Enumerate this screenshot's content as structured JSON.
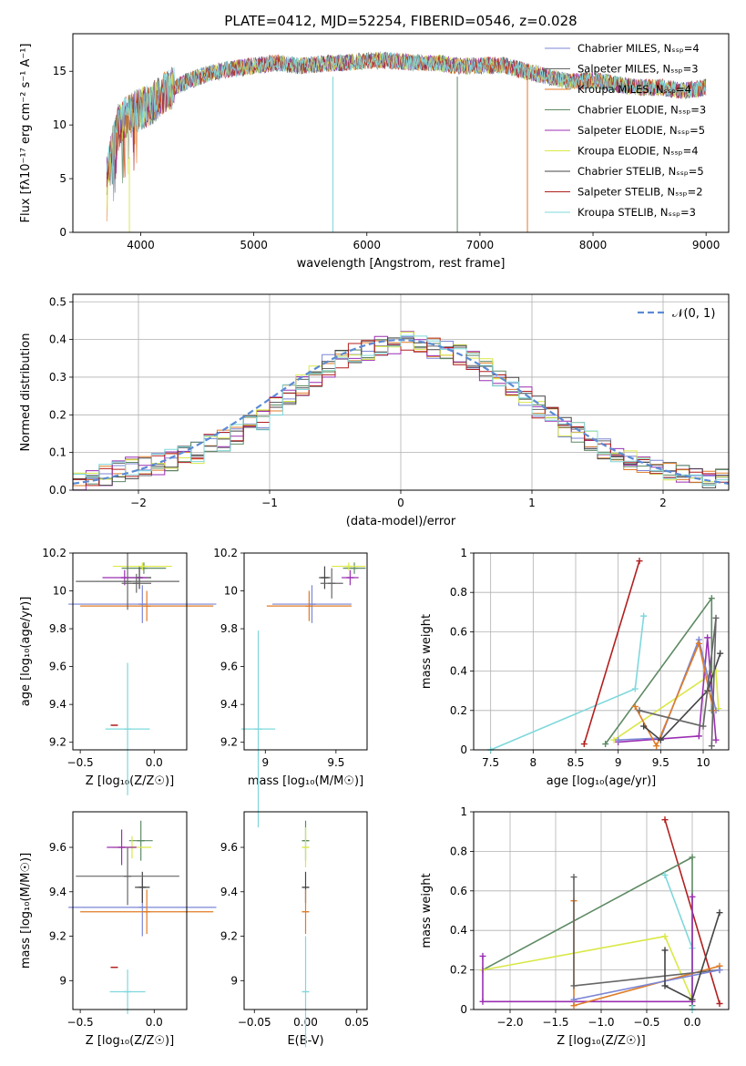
{
  "figure_title": "PLATE=0412, MJD=52254, FIBERID=0546, z=0.028",
  "model_colors": [
    "#7b86d6",
    "#666666",
    "#e07b25",
    "#5e8a64",
    "#9b2fb2",
    "#d9e847",
    "#444444",
    "#b21f1f",
    "#7fd8dc"
  ],
  "chart_data": [
    {
      "id": "spectrum",
      "type": "line",
      "xlabel": "wavelength [Angstrom, rest frame]",
      "ylabel": "Flux [fλ10⁻¹⁷ erg cm⁻² s⁻¹ A⁻¹]",
      "xlim": [
        3400,
        9200
      ],
      "ylim": [
        0,
        18.5
      ],
      "xticks": [
        4000,
        5000,
        6000,
        7000,
        8000,
        9000
      ],
      "yticks": [
        0,
        5,
        10,
        15
      ],
      "grid": false,
      "legend_position": "upper-right",
      "legend": [
        "Chabrier MILES, N_SSP=4",
        "Salpeter MILES, N_SSP=3",
        "Kroupa MILES, N_SSP=4",
        "Chabrier ELODIE, N_SSP=3",
        "Salpeter ELODIE, N_SSP=5",
        "Kroupa ELODIE, N_SSP=4",
        "Chabrier STELIB, N_SSP=5",
        "Salpeter STELIB, N_SSP=2",
        "Kroupa STELIB, N_SSP=3"
      ],
      "continuum": {
        "x": [
          3700,
          3800,
          3900,
          4000,
          4100,
          4200,
          4400,
          4600,
          4800,
          5000,
          5200,
          5400,
          5600,
          5800,
          6000,
          6200,
          6400,
          6600,
          6800,
          7000,
          7200,
          7400,
          7600,
          7800,
          8000,
          8200,
          8400,
          8600,
          8800,
          9000
        ],
        "y": [
          5.5,
          10,
          11,
          11.5,
          12,
          13,
          14,
          14.8,
          15.2,
          15.5,
          15.8,
          15.5,
          15.7,
          15.8,
          16,
          16,
          15.8,
          15.8,
          15.5,
          15.5,
          15.6,
          15,
          14.5,
          14,
          14.2,
          13.8,
          13.5,
          13.5,
          13.2,
          13.5
        ]
      }
    },
    {
      "id": "residuals",
      "type": "area",
      "xlabel": "(data-model)/error",
      "ylabel": "Normed distribution",
      "xlim": [
        -2.5,
        2.5
      ],
      "ylim": [
        0,
        0.52
      ],
      "xticks": [
        -2,
        -1,
        0,
        1,
        2
      ],
      "yticks": [
        0.0,
        0.1,
        0.2,
        0.3,
        0.4,
        0.5
      ],
      "grid": true,
      "legend": [
        "𝒩(0, 1)"
      ],
      "legend_position": "upper-right",
      "bin_edges_start": -2.5,
      "bin_width": 0.1,
      "histogram": [
        0.02,
        0.03,
        0.04,
        0.05,
        0.06,
        0.06,
        0.07,
        0.08,
        0.09,
        0.1,
        0.12,
        0.13,
        0.15,
        0.17,
        0.19,
        0.22,
        0.25,
        0.28,
        0.3,
        0.33,
        0.35,
        0.36,
        0.37,
        0.38,
        0.39,
        0.4,
        0.39,
        0.38,
        0.37,
        0.36,
        0.34,
        0.32,
        0.3,
        0.27,
        0.25,
        0.22,
        0.19,
        0.17,
        0.15,
        0.13,
        0.11,
        0.1,
        0.08,
        0.07,
        0.06,
        0.05,
        0.04,
        0.03,
        0.03,
        0.03
      ]
    },
    {
      "id": "age-vs-z",
      "type": "scatter",
      "xlabel": "Z [log₁₀(Z/Z☉)]",
      "ylabel": "age  [log₁₀(age/yr)]",
      "xlim": [
        -0.55,
        0.22
      ],
      "ylim": [
        9.16,
        10.2
      ],
      "xticks": [
        -0.5,
        0.0
      ],
      "xtick_labels": [
        "−0.5",
        "0.0"
      ],
      "yticks": [
        9.2,
        9.4,
        9.6,
        9.8,
        10.0,
        10.2
      ],
      "grid": false,
      "points": [
        {
          "x": -0.08,
          "y": 9.93,
          "xerr": 0.5,
          "yerr": 0.1,
          "c": 0
        },
        {
          "x": -0.07,
          "y": 10.12,
          "xerr": 0.15,
          "yerr": 0.03,
          "c": 3
        },
        {
          "x": -0.05,
          "y": 9.92,
          "xerr": 0.45,
          "yerr": 0.08,
          "c": 2
        },
        {
          "x": -0.1,
          "y": 10.07,
          "xerr": 0.08,
          "yerr": 0.06,
          "c": 6
        },
        {
          "x": -0.08,
          "y": 10.13,
          "xerr": 0.2,
          "yerr": 0.02,
          "c": 5
        },
        {
          "x": -0.2,
          "y": 10.07,
          "xerr": 0.15,
          "yerr": 0.04,
          "c": 4
        },
        {
          "x": -0.12,
          "y": 10.04,
          "xerr": 0.1,
          "yerr": 0.05,
          "c": 1
        },
        {
          "x": -0.18,
          "y": 10.05,
          "xerr": 0.35,
          "yerr": 0.15,
          "c": 1
        },
        {
          "x": -0.27,
          "y": 9.29,
          "xerr": 0.02,
          "yerr": 0.0,
          "c": 7
        },
        {
          "x": -0.18,
          "y": 9.27,
          "xerr": 0.15,
          "yerr": 0.35,
          "c": 8
        }
      ]
    },
    {
      "id": "age-vs-mass",
      "type": "scatter",
      "xlabel": "mass [log₁₀(M/M☉)]",
      "ylabel": "",
      "xlim": [
        8.85,
        9.72
      ],
      "ylim": [
        9.16,
        10.2
      ],
      "xticks": [
        9.0,
        9.5
      ],
      "yticks": [
        9.2,
        9.4,
        9.6,
        9.8,
        10.0,
        10.2
      ],
      "grid": false,
      "points": [
        {
          "x": 9.33,
          "y": 9.93,
          "xerr": 0.28,
          "yerr": 0.1,
          "c": 0
        },
        {
          "x": 9.63,
          "y": 10.12,
          "xerr": 0.08,
          "yerr": 0.03,
          "c": 3
        },
        {
          "x": 9.31,
          "y": 9.92,
          "xerr": 0.3,
          "yerr": 0.08,
          "c": 2
        },
        {
          "x": 9.42,
          "y": 10.07,
          "xerr": 0.04,
          "yerr": 0.06,
          "c": 6
        },
        {
          "x": 9.59,
          "y": 10.13,
          "xerr": 0.12,
          "yerr": 0.02,
          "c": 5
        },
        {
          "x": 9.6,
          "y": 10.07,
          "xerr": 0.06,
          "yerr": 0.04,
          "c": 4
        },
        {
          "x": 9.47,
          "y": 10.04,
          "xerr": 0.08,
          "yerr": 0.08,
          "c": 1
        },
        {
          "x": 8.95,
          "y": 9.27,
          "xerr": 0.12,
          "yerr": 0.52,
          "c": 8
        }
      ]
    },
    {
      "id": "weight-vs-age",
      "type": "line",
      "xlabel": "age  [log₁₀(age/yr)]",
      "ylabel": "mass weight",
      "xlim": [
        7.3,
        10.3
      ],
      "ylim": [
        0,
        1.0
      ],
      "xticks": [
        7.5,
        8.0,
        8.5,
        9.0,
        9.5,
        10.0
      ],
      "yticks": [
        0.0,
        0.2,
        0.4,
        0.6,
        0.8,
        1.0
      ],
      "grid": true,
      "series": [
        {
          "c": 8,
          "x": [
            7.5,
            9.2,
            9.3
          ],
          "y": [
            0.0,
            0.31,
            0.68
          ]
        },
        {
          "c": 7,
          "x": [
            8.6,
            9.25
          ],
          "y": [
            0.03,
            0.96
          ]
        },
        {
          "c": 3,
          "x": [
            8.85,
            10.1,
            10.1
          ],
          "y": [
            0.03,
            0.77,
            0.2
          ]
        },
        {
          "c": 5,
          "x": [
            8.95,
            10.15,
            10.18
          ],
          "y": [
            0.05,
            0.4,
            0.21
          ]
        },
        {
          "c": 4,
          "x": [
            9.0,
            9.95,
            10.05,
            10.15
          ],
          "y": [
            0.04,
            0.07,
            0.57,
            0.05
          ]
        },
        {
          "c": 0,
          "x": [
            9.0,
            9.5,
            9.95,
            10.15
          ],
          "y": [
            0.05,
            0.06,
            0.56,
            0.2
          ]
        },
        {
          "c": 2,
          "x": [
            9.2,
            9.45,
            9.95,
            10.12
          ],
          "y": [
            0.22,
            0.02,
            0.54,
            0.2
          ]
        },
        {
          "c": 6,
          "x": [
            9.3,
            9.5,
            10.05,
            10.2
          ],
          "y": [
            0.12,
            0.05,
            0.3,
            0.49
          ]
        },
        {
          "c": 1,
          "x": [
            9.25,
            10.0,
            10.15,
            10.1
          ],
          "y": [
            0.2,
            0.12,
            0.67,
            0.02
          ]
        }
      ]
    },
    {
      "id": "mass-vs-z",
      "type": "scatter",
      "xlabel": "Z [log₁₀(Z/Z☉)]",
      "ylabel": "mass [log₁₀(M/M☉)]",
      "xlim": [
        -0.55,
        0.22
      ],
      "ylim": [
        8.87,
        9.76
      ],
      "xticks": [
        -0.5,
        0.0
      ],
      "xtick_labels": [
        "−0.5",
        "0.0"
      ],
      "yticks": [
        9.0,
        9.2,
        9.4,
        9.6
      ],
      "grid": false,
      "points": [
        {
          "x": -0.08,
          "y": 9.33,
          "xerr": 0.5,
          "yerr": 0.13,
          "c": 0
        },
        {
          "x": -0.05,
          "y": 9.31,
          "xerr": 0.45,
          "yerr": 0.1,
          "c": 2
        },
        {
          "x": -0.09,
          "y": 9.63,
          "xerr": 0.08,
          "yerr": 0.09,
          "c": 3
        },
        {
          "x": -0.08,
          "y": 9.42,
          "xerr": 0.05,
          "yerr": 0.07,
          "c": 6
        },
        {
          "x": -0.15,
          "y": 9.6,
          "xerr": 0.13,
          "yerr": 0.05,
          "c": 5
        },
        {
          "x": -0.22,
          "y": 9.6,
          "xerr": 0.1,
          "yerr": 0.08,
          "c": 4
        },
        {
          "x": -0.18,
          "y": 9.47,
          "xerr": 0.35,
          "yerr": 0.13,
          "c": 1
        },
        {
          "x": -0.27,
          "y": 9.06,
          "xerr": 0.02,
          "yerr": 0.0,
          "c": 7
        },
        {
          "x": -0.18,
          "y": 8.95,
          "xerr": 0.12,
          "yerr": 0.1,
          "c": 8
        }
      ]
    },
    {
      "id": "mass-vs-ebv",
      "type": "scatter",
      "xlabel": "E(B-V)",
      "ylabel": "",
      "xlim": [
        -0.06,
        0.06
      ],
      "ylim": [
        8.87,
        9.76
      ],
      "xticks": [
        -0.05,
        0.0,
        0.05
      ],
      "xtick_labels": [
        "−0.05",
        "0.00",
        "0.05"
      ],
      "yticks": [
        9.0,
        9.2,
        9.4,
        9.6
      ],
      "grid": false,
      "points": [
        {
          "x": 0.0,
          "y": 9.63,
          "xerr": 0.0,
          "yerr": 0.09,
          "c": 3
        },
        {
          "x": 0.0,
          "y": 9.6,
          "xerr": 0.0,
          "yerr": 0.09,
          "c": 5
        },
        {
          "x": 0.0,
          "y": 9.42,
          "xerr": 0.0,
          "yerr": 0.07,
          "c": 6
        },
        {
          "x": 0.0,
          "y": 9.31,
          "xerr": 0.0,
          "yerr": 0.1,
          "c": 2
        },
        {
          "x": 0.0,
          "y": 8.95,
          "xerr": 0.0,
          "yerr": 0.25,
          "c": 8
        }
      ]
    },
    {
      "id": "weight-vs-z",
      "type": "line",
      "xlabel": "Z [log₁₀(Z/Z☉)]",
      "ylabel": "mass weight",
      "xlim": [
        -2.4,
        0.4
      ],
      "ylim": [
        0,
        1.0
      ],
      "xticks": [
        -2.0,
        -1.5,
        -1.0,
        -0.5,
        0.0
      ],
      "xtick_labels": [
        "−2.0",
        "−1.5",
        "−1.0",
        "−0.5",
        "0.0"
      ],
      "yticks": [
        0.0,
        0.2,
        0.4,
        0.6,
        0.8,
        1.0
      ],
      "grid": true,
      "series": [
        {
          "c": 7,
          "x": [
            -0.3,
            0.3
          ],
          "y": [
            0.96,
            0.03
          ]
        },
        {
          "c": 3,
          "x": [
            -2.3,
            0.0,
            0.0
          ],
          "y": [
            0.2,
            0.77,
            0.02
          ]
        },
        {
          "c": 8,
          "x": [
            -0.3,
            0.0,
            0.0
          ],
          "y": [
            0.68,
            0.31,
            0.0
          ]
        },
        {
          "c": 5,
          "x": [
            -2.3,
            -0.3,
            0.0
          ],
          "y": [
            0.2,
            0.37,
            0.05
          ]
        },
        {
          "c": 4,
          "x": [
            -2.3,
            -2.3,
            0.0,
            0.0
          ],
          "y": [
            0.27,
            0.04,
            0.04,
            0.57
          ]
        },
        {
          "c": 2,
          "x": [
            -1.3,
            -1.3,
            0.3
          ],
          "y": [
            0.55,
            0.02,
            0.22
          ]
        },
        {
          "c": 1,
          "x": [
            -1.3,
            -1.3,
            0.3
          ],
          "y": [
            0.67,
            0.12,
            0.2
          ]
        },
        {
          "c": 0,
          "x": [
            -1.3,
            0.3
          ],
          "y": [
            0.05,
            0.2
          ]
        },
        {
          "c": 6,
          "x": [
            -0.3,
            -0.3,
            0.0,
            0.3
          ],
          "y": [
            0.3,
            0.12,
            0.05,
            0.49
          ]
        }
      ]
    }
  ]
}
